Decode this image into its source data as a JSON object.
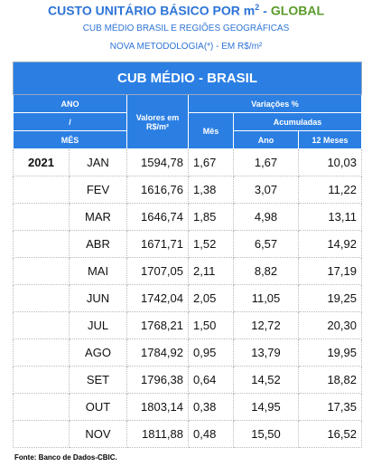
{
  "header": {
    "title": {
      "main": "CUSTO UNITÁRIO BÁSICO POR m",
      "sup": "2",
      "separator": "-",
      "highlight": "GLOBAL"
    },
    "subtitle": "CUB MÉDIO BRASIL E REGIÕES GEOGRÁFICAS",
    "note": "NOVA METODOLOGIA(*) - EM R$/m²"
  },
  "table": {
    "title": "CUB MÉDIO - BRASIL",
    "columns": {
      "period": [
        "ANO",
        "/",
        "MÊS"
      ],
      "value": "Valores em R$/m²",
      "variations": "Variações %",
      "month": "Mês",
      "accumulated": "Acumuladas",
      "year": "Ano",
      "twelve_months": "12 Meses"
    },
    "rows": [
      [
        "2021",
        "JAN",
        "1594,78",
        "1,67",
        "1,67",
        "10,03"
      ],
      [
        null,
        "FEV",
        "1616,76",
        "1,38",
        "3,07",
        "11,22"
      ],
      [
        null,
        "MAR",
        "1646,74",
        "1,85",
        "4,98",
        "13,11"
      ],
      [
        null,
        "ABR",
        "1671,71",
        "1,52",
        "6,57",
        "14,92"
      ],
      [
        null,
        "MAI",
        "1707,05",
        "2,11",
        "8,82",
        "17,19"
      ],
      [
        null,
        "JUN",
        "1742,04",
        "2,05",
        "11,05",
        "19,25"
      ],
      [
        null,
        "JUL",
        "1768,21",
        "1,50",
        "12,72",
        "20,30"
      ],
      [
        null,
        "AGO",
        "1784,92",
        "0,95",
        "13,79",
        "19,95"
      ],
      [
        null,
        "SET",
        "1796,38",
        "0,64",
        "14,52",
        "18,82"
      ],
      [
        null,
        "OUT",
        "1803,14",
        "0,38",
        "14,95",
        "17,35"
      ],
      [
        null,
        "NOV",
        "1811,88",
        "0,48",
        "15,50",
        "16,52"
      ]
    ]
  },
  "footer": {
    "source": "Fonte: Banco de Dados-CBIC."
  }
}
